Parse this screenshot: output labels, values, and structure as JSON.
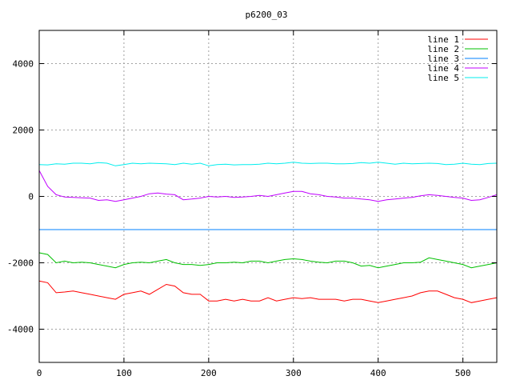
{
  "chart_data": {
    "type": "line",
    "title": "p6200_03",
    "xlabel": "",
    "ylabel": "",
    "xlim": [
      0,
      540
    ],
    "ylim": [
      -5000,
      5000
    ],
    "xticks": [
      0,
      100,
      200,
      300,
      400,
      500
    ],
    "yticks": [
      -4000,
      -2000,
      0,
      2000,
      4000
    ],
    "grid": true,
    "legend_position": "top-right",
    "x": [
      0,
      10,
      20,
      30,
      40,
      50,
      60,
      70,
      80,
      90,
      100,
      110,
      120,
      130,
      140,
      150,
      160,
      170,
      180,
      190,
      200,
      210,
      220,
      230,
      240,
      250,
      260,
      270,
      280,
      290,
      300,
      310,
      320,
      330,
      340,
      350,
      360,
      370,
      380,
      390,
      400,
      410,
      420,
      430,
      440,
      450,
      460,
      470,
      480,
      490,
      500,
      510,
      520,
      530,
      540
    ],
    "series": [
      {
        "name": "line 1",
        "color": "#ff0000",
        "values": [
          -2550,
          -2600,
          -2900,
          -2880,
          -2850,
          -2900,
          -2950,
          -3000,
          -3050,
          -3100,
          -2950,
          -2900,
          -2850,
          -2950,
          -2800,
          -2650,
          -2700,
          -2900,
          -2950,
          -2950,
          -3150,
          -3150,
          -3100,
          -3150,
          -3100,
          -3150,
          -3150,
          -3050,
          -3150,
          -3100,
          -3050,
          -3080,
          -3050,
          -3100,
          -3100,
          -3100,
          -3150,
          -3100,
          -3100,
          -3150,
          -3200,
          -3150,
          -3100,
          -3050,
          -3000,
          -2900,
          -2850,
          -2850,
          -2950,
          -3050,
          -3100,
          -3200,
          -3150,
          -3100,
          -3050
        ]
      },
      {
        "name": "line 2",
        "color": "#00c000",
        "values": [
          -1700,
          -1750,
          -2000,
          -1950,
          -2000,
          -1980,
          -2000,
          -2050,
          -2100,
          -2150,
          -2050,
          -2000,
          -1980,
          -2000,
          -1950,
          -1900,
          -2000,
          -2050,
          -2050,
          -2080,
          -2050,
          -2000,
          -2000,
          -1980,
          -2000,
          -1950,
          -1950,
          -2000,
          -1950,
          -1900,
          -1880,
          -1900,
          -1950,
          -1980,
          -2000,
          -1950,
          -1950,
          -2000,
          -2100,
          -2080,
          -2150,
          -2100,
          -2050,
          -2000,
          -2000,
          -1980,
          -1850,
          -1900,
          -1950,
          -2000,
          -2050,
          -2150,
          -2100,
          -2050,
          -2000
        ]
      },
      {
        "name": "line 3",
        "color": "#0080ff",
        "values": [
          -1000,
          -1000,
          -1000,
          -1000,
          -1000,
          -1000,
          -1000,
          -1000,
          -1000,
          -1000,
          -1000,
          -1000,
          -1000,
          -1000,
          -1000,
          -1000,
          -1000,
          -1000,
          -1000,
          -1000,
          -1000,
          -1000,
          -1000,
          -1000,
          -1000,
          -1000,
          -1000,
          -1000,
          -1000,
          -1000,
          -1000,
          -1000,
          -1000,
          -1000,
          -1000,
          -1000,
          -1000,
          -1000,
          -1000,
          -1000,
          -1000,
          -1000,
          -1000,
          -1000,
          -1000,
          -1000,
          -1000,
          -1000,
          -1000,
          -1000,
          -1000,
          -1000,
          -1000,
          -1000,
          -1000
        ]
      },
      {
        "name": "line 4",
        "color": "#c000ff",
        "values": [
          780,
          300,
          50,
          -20,
          -30,
          -40,
          -50,
          -120,
          -100,
          -150,
          -100,
          -50,
          0,
          80,
          100,
          70,
          50,
          -100,
          -80,
          -50,
          0,
          -20,
          0,
          -30,
          -20,
          0,
          30,
          0,
          50,
          100,
          150,
          150,
          80,
          50,
          0,
          -20,
          -50,
          -50,
          -80,
          -100,
          -150,
          -100,
          -80,
          -50,
          -30,
          20,
          50,
          30,
          0,
          -30,
          -50,
          -120,
          -100,
          -30,
          50
        ]
      },
      {
        "name": "line 5",
        "color": "#00eeee",
        "values": [
          960,
          950,
          980,
          970,
          1000,
          1000,
          980,
          1020,
          1000,
          920,
          960,
          1000,
          980,
          1000,
          990,
          980,
          960,
          1000,
          970,
          1000,
          920,
          960,
          970,
          950,
          960,
          960,
          970,
          1000,
          980,
          1000,
          1030,
          1000,
          990,
          1000,
          1000,
          980,
          980,
          990,
          1020,
          1000,
          1030,
          1000,
          970,
          1000,
          980,
          990,
          1000,
          990,
          960,
          970,
          1000,
          970,
          960,
          990,
          1000
        ]
      }
    ]
  }
}
